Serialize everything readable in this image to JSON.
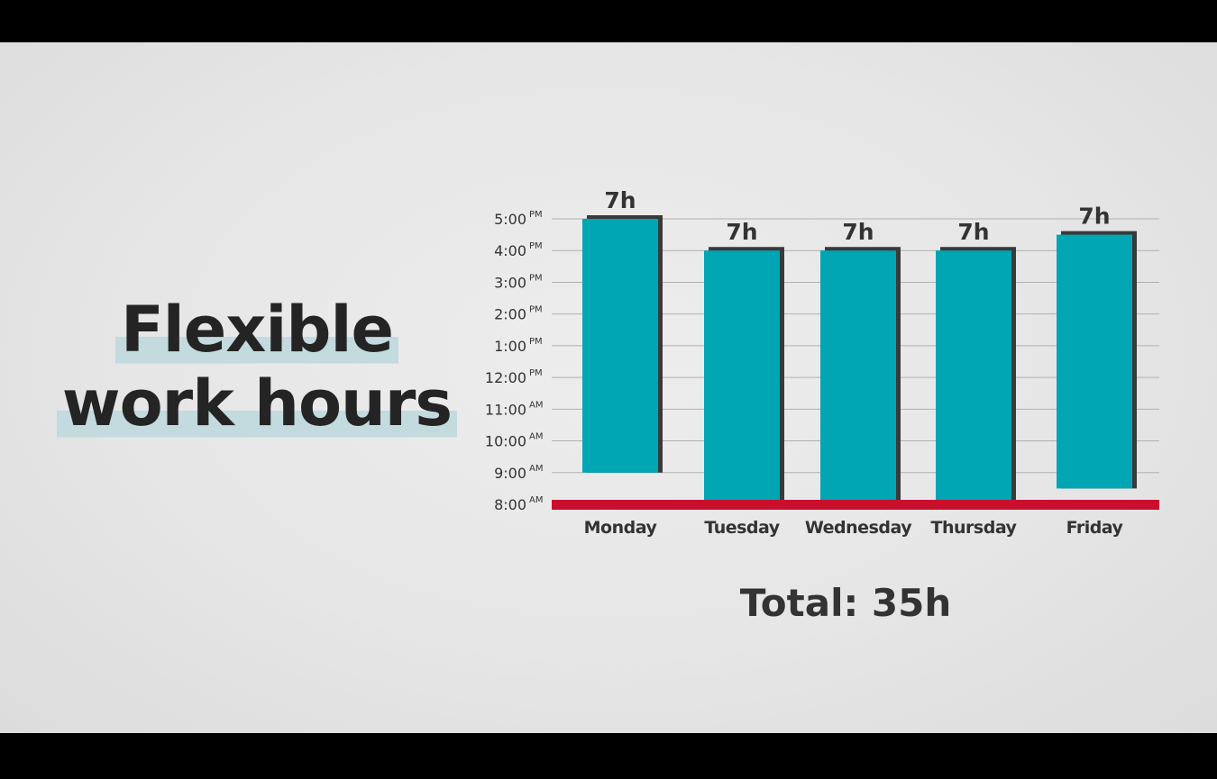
{
  "title": {
    "line1": "Flexible",
    "line2": "work hours"
  },
  "total_label": "Total: 35h",
  "colors": {
    "bar": "#00a6b3",
    "bar_shadow": "#3a3a3a",
    "baseline": "#c8102e",
    "grid": "#b0b0b0",
    "text": "#333333"
  },
  "chart_data": {
    "type": "bar",
    "subtype": "floating-range",
    "categories": [
      "Monday",
      "Tuesday",
      "Wednesday",
      "Thursday",
      "Friday"
    ],
    "series": [
      {
        "start_hour": [
          9,
          8,
          8,
          8,
          8.5
        ],
        "end_hour": [
          17,
          16,
          16,
          16,
          16.5
        ],
        "labels": [
          "7h",
          "7h",
          "7h",
          "7h",
          "7h"
        ]
      }
    ],
    "y_ticks": [
      {
        "hour": 8,
        "time": "8:00",
        "suffix": "AM"
      },
      {
        "hour": 9,
        "time": "9:00",
        "suffix": "AM"
      },
      {
        "hour": 10,
        "time": "10:00",
        "suffix": "AM"
      },
      {
        "hour": 11,
        "time": "11:00",
        "suffix": "AM"
      },
      {
        "hour": 12,
        "time": "12:00",
        "suffix": "PM"
      },
      {
        "hour": 13,
        "time": "1:00",
        "suffix": "PM"
      },
      {
        "hour": 14,
        "time": "2:00",
        "suffix": "PM"
      },
      {
        "hour": 15,
        "time": "3:00",
        "suffix": "PM"
      },
      {
        "hour": 16,
        "time": "4:00",
        "suffix": "PM"
      },
      {
        "hour": 17,
        "time": "5:00",
        "suffix": "PM"
      }
    ],
    "ylim": [
      8,
      17
    ],
    "grid": true,
    "legend": "none"
  }
}
